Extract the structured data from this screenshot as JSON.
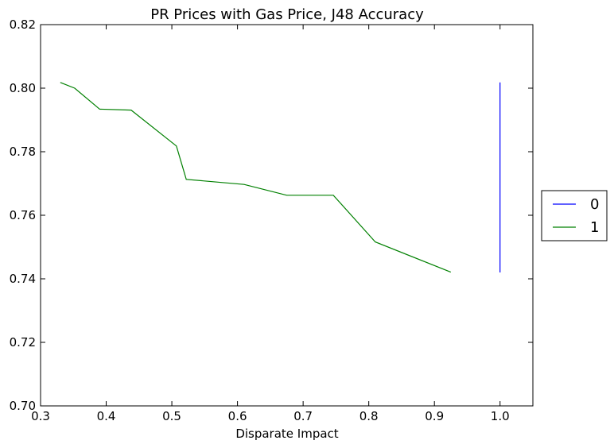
{
  "chart_data": {
    "type": "line",
    "title": "PR Prices with Gas Price, J48 Accuracy",
    "xlabel": "Disparate Impact",
    "ylabel": "",
    "xlim": [
      0.3,
      1.05
    ],
    "ylim": [
      0.7,
      0.82
    ],
    "x_ticks": [
      0.3,
      0.4,
      0.5,
      0.6,
      0.7,
      0.8,
      0.9,
      1.0
    ],
    "x_tick_labels": [
      "0.3",
      "0.4",
      "0.5",
      "0.6",
      "0.7",
      "0.8",
      "0.9",
      "1.0"
    ],
    "y_ticks": [
      0.7,
      0.72,
      0.74,
      0.76,
      0.78,
      0.8,
      0.82
    ],
    "y_tick_labels": [
      "0.70",
      "0.72",
      "0.74",
      "0.76",
      "0.78",
      "0.80",
      "0.82"
    ],
    "grid": false,
    "legend_position": "right",
    "series": [
      {
        "name": "0",
        "color": "#0000ff",
        "x": [
          1.0,
          1.0
        ],
        "y": [
          0.742,
          0.8018
        ]
      },
      {
        "name": "1",
        "color": "#008000",
        "x": [
          0.33,
          0.352,
          0.39,
          0.438,
          0.507,
          0.522,
          0.61,
          0.675,
          0.746,
          0.81,
          0.925
        ],
        "y": [
          0.8018,
          0.8,
          0.7934,
          0.7931,
          0.7818,
          0.7713,
          0.7697,
          0.7663,
          0.7663,
          0.7516,
          0.7421
        ]
      }
    ]
  }
}
